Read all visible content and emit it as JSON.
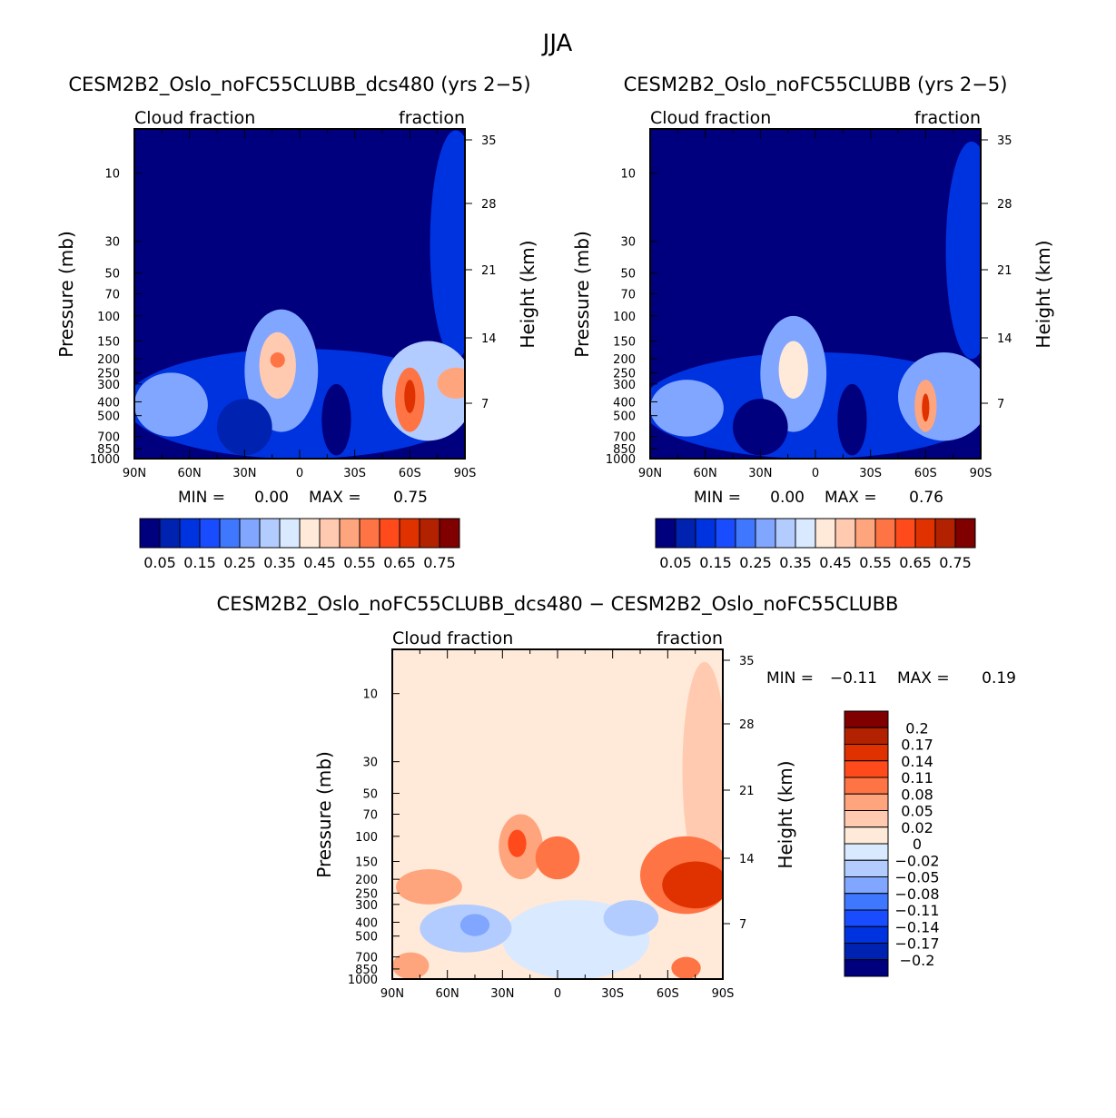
{
  "chart_data": {
    "type": "contour",
    "title": "JJA",
    "palette": [
      "#00007f",
      "#0022b0",
      "#0033e0",
      "#1a4cff",
      "#3f77ff",
      "#80a6ff",
      "#b3ccff",
      "#d9e9ff",
      "#ffe9d8",
      "#ffcab0",
      "#ffa57d",
      "#ff7444",
      "#ff4b1c",
      "#e03200",
      "#b32200",
      "#800000"
    ],
    "panels": [
      {
        "title": "CESM2B2_Oslo_noFC55CLUBB_dcs480 (yrs 2−5)",
        "top_left_label": "Cloud fraction",
        "top_right_label": "fraction",
        "min_label": "MIN =",
        "min": "0.00",
        "max_label": "MAX =",
        "max": "0.75",
        "base_value": 0.0,
        "colorbar_labels": [
          "0.05",
          "0.15",
          "0.25",
          "0.35",
          "0.45",
          "0.55",
          "0.65",
          "0.75"
        ],
        "features": [
          {
            "lat": 0,
            "hw": 95,
            "ptop": 170,
            "pbot": 1000,
            "v": 0.12
          },
          {
            "lat": -85,
            "hw": 14,
            "ptop": 5,
            "pbot": 200,
            "v": 0.12
          },
          {
            "lat": 10,
            "hw": 20,
            "ptop": 90,
            "pbot": 650,
            "v": 0.3
          },
          {
            "lat": 12,
            "hw": 10,
            "ptop": 130,
            "pbot": 380,
            "v": 0.45
          },
          {
            "lat": 12,
            "hw": 4,
            "ptop": 180,
            "pbot": 230,
            "v": 0.6
          },
          {
            "lat": -70,
            "hw": 25,
            "ptop": 150,
            "pbot": 750,
            "v": 0.35
          },
          {
            "lat": -85,
            "hw": 10,
            "ptop": 230,
            "pbot": 380,
            "v": 0.5
          },
          {
            "lat": -60,
            "hw": 8,
            "ptop": 230,
            "pbot": 650,
            "v": 0.55
          },
          {
            "lat": -60,
            "hw": 3,
            "ptop": 280,
            "pbot": 480,
            "v": 0.7
          },
          {
            "lat": 70,
            "hw": 20,
            "ptop": 250,
            "pbot": 700,
            "v": 0.3
          },
          {
            "lat": 30,
            "hw": 15,
            "ptop": 380,
            "pbot": 950,
            "v": 0.05
          },
          {
            "lat": -20,
            "hw": 8,
            "ptop": 300,
            "pbot": 950,
            "v": 0.02
          }
        ]
      },
      {
        "title": "CESM2B2_Oslo_noFC55CLUBB (yrs 2−5)",
        "top_left_label": "Cloud fraction",
        "top_right_label": "fraction",
        "min_label": "MIN =",
        "min": "0.00",
        "max_label": "MAX =",
        "max": "0.76",
        "base_value": 0.0,
        "colorbar_labels": [
          "0.05",
          "0.15",
          "0.25",
          "0.35",
          "0.45",
          "0.55",
          "0.65",
          "0.75"
        ],
        "features": [
          {
            "lat": 0,
            "hw": 95,
            "ptop": 180,
            "pbot": 1000,
            "v": 0.12
          },
          {
            "lat": -85,
            "hw": 14,
            "ptop": 6,
            "pbot": 200,
            "v": 0.12
          },
          {
            "lat": 12,
            "hw": 18,
            "ptop": 100,
            "pbot": 650,
            "v": 0.3
          },
          {
            "lat": 12,
            "hw": 8,
            "ptop": 150,
            "pbot": 380,
            "v": 0.42
          },
          {
            "lat": -70,
            "hw": 25,
            "ptop": 180,
            "pbot": 750,
            "v": 0.3
          },
          {
            "lat": -60,
            "hw": 6,
            "ptop": 280,
            "pbot": 650,
            "v": 0.5
          },
          {
            "lat": -60,
            "hw": 2,
            "ptop": 350,
            "pbot": 550,
            "v": 0.66
          },
          {
            "lat": 70,
            "hw": 20,
            "ptop": 280,
            "pbot": 700,
            "v": 0.28
          },
          {
            "lat": 30,
            "hw": 15,
            "ptop": 380,
            "pbot": 950,
            "v": 0.04
          },
          {
            "lat": -20,
            "hw": 8,
            "ptop": 300,
            "pbot": 950,
            "v": 0.02
          }
        ]
      },
      {
        "title": "CESM2B2_Oslo_noFC55CLUBB_dcs480 − CESM2B2_Oslo_noFC55CLUBB",
        "top_left_label": "Cloud fraction",
        "top_right_label": "fraction",
        "min_label": "MIN =",
        "min": "−0.11",
        "max_label": "MAX =",
        "max": "0.19",
        "base_value": 0.01,
        "levels": [
          -0.2,
          -0.17,
          -0.14,
          -0.11,
          -0.08,
          -0.05,
          -0.02,
          0,
          0.02,
          0.05,
          0.08,
          0.11,
          0.14,
          0.17,
          0.2
        ],
        "colorbar_labels": [
          "0.2",
          "0.17",
          "0.14",
          "0.11",
          "0.08",
          "0.05",
          "0.02",
          "0",
          "−0.02",
          "−0.05",
          "−0.08",
          "−0.11",
          "−0.14",
          "−0.17",
          "−0.2"
        ],
        "features": [
          {
            "lat": -80,
            "hw": 12,
            "ptop": 6,
            "pbot": 200,
            "v": 0.03
          },
          {
            "lat": -10,
            "hw": 40,
            "ptop": 280,
            "pbot": 1000,
            "v": -0.01
          },
          {
            "lat": 50,
            "hw": 25,
            "ptop": 300,
            "pbot": 650,
            "v": -0.03
          },
          {
            "lat": 45,
            "hw": 8,
            "ptop": 350,
            "pbot": 500,
            "v": -0.07
          },
          {
            "lat": -40,
            "hw": 15,
            "ptop": 280,
            "pbot": 500,
            "v": -0.04
          },
          {
            "lat": -70,
            "hw": 25,
            "ptop": 100,
            "pbot": 350,
            "v": 0.09
          },
          {
            "lat": -75,
            "hw": 18,
            "ptop": 150,
            "pbot": 320,
            "v": 0.15
          },
          {
            "lat": 20,
            "hw": 12,
            "ptop": 70,
            "pbot": 200,
            "v": 0.06
          },
          {
            "lat": 22,
            "hw": 5,
            "ptop": 90,
            "pbot": 140,
            "v": 0.12
          },
          {
            "lat": 0,
            "hw": 12,
            "ptop": 100,
            "pbot": 200,
            "v": 0.09
          },
          {
            "lat": 70,
            "hw": 18,
            "ptop": 170,
            "pbot": 300,
            "v": 0.06
          },
          {
            "lat": 80,
            "hw": 10,
            "ptop": 650,
            "pbot": 1000,
            "v": 0.06
          },
          {
            "lat": -70,
            "hw": 8,
            "ptop": 700,
            "pbot": 1000,
            "v": 0.08
          }
        ]
      }
    ],
    "xticks": [
      "90N",
      "60N",
      "30N",
      "0",
      "30S",
      "60S",
      "90S"
    ],
    "xtick_values": [
      90,
      60,
      30,
      0,
      -30,
      -60,
      -90
    ],
    "yticks": [
      "10",
      "30",
      "50",
      "70",
      "100",
      "150",
      "200",
      "250",
      "300",
      "400",
      "500",
      "700",
      "850",
      "1000"
    ],
    "ytick_values": [
      10,
      30,
      50,
      70,
      100,
      150,
      200,
      250,
      300,
      400,
      500,
      700,
      850,
      1000
    ],
    "ylabel": "Pressure (mb)",
    "y2label": "Height (km)",
    "y2ticks": [
      "35",
      "28",
      "21",
      "14",
      "7"
    ],
    "y2tick_values": [
      35,
      28,
      21,
      14,
      7
    ]
  }
}
